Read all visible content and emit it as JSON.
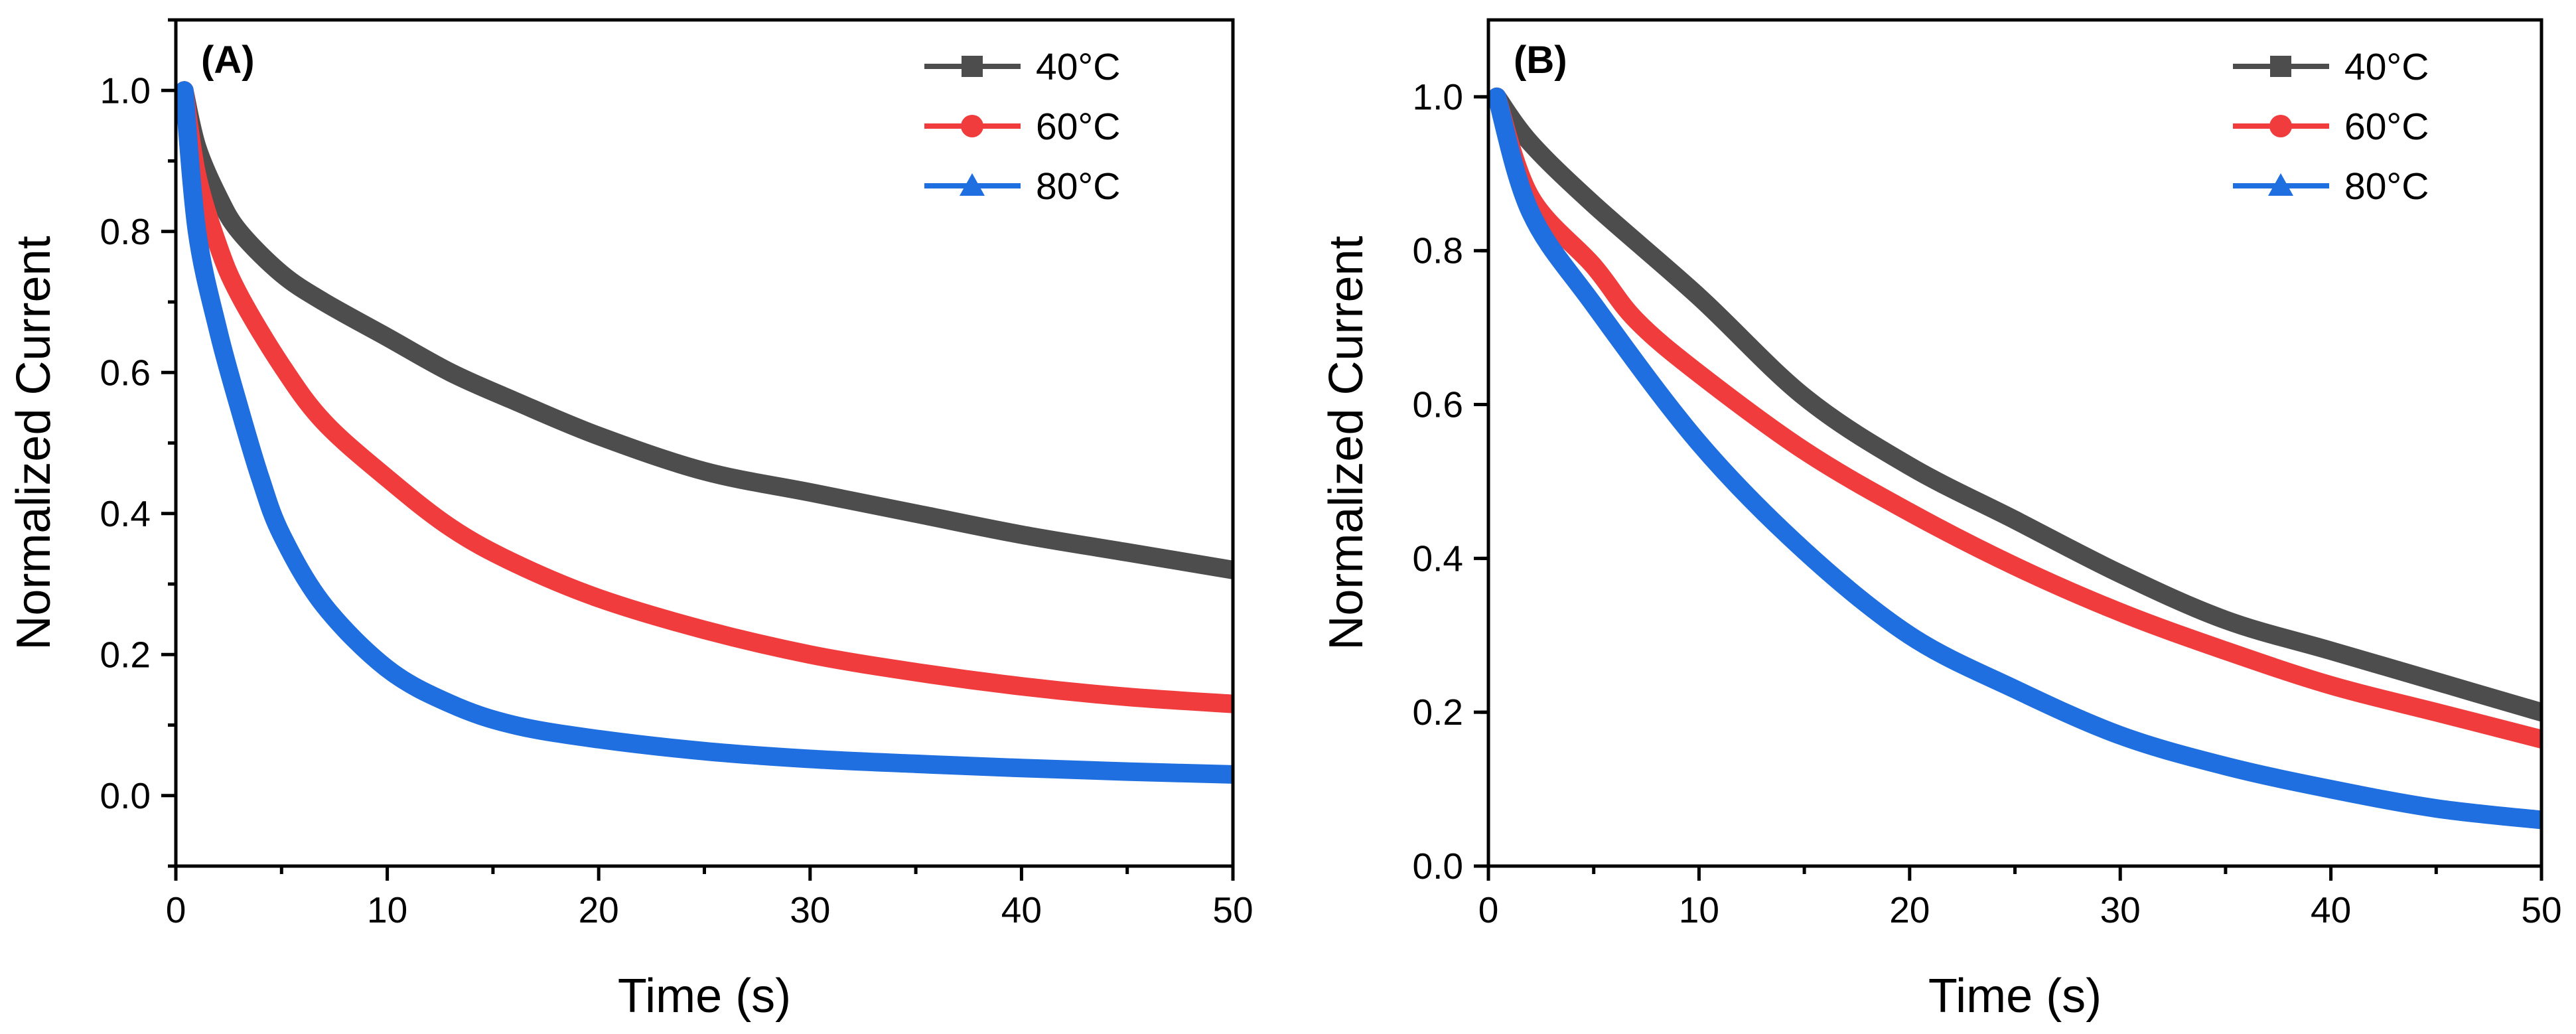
{
  "chart_data": [
    {
      "type": "line",
      "panel_label": "(A)",
      "xlabel": "Time (s)",
      "ylabel": "Normalized Current",
      "xlim": [
        0,
        50
      ],
      "ylim": [
        -0.1,
        1.1
      ],
      "xticks": [
        0,
        10,
        20,
        30,
        40,
        50
      ],
      "yticks": [
        0.0,
        0.2,
        0.4,
        0.6,
        0.8,
        1.0
      ],
      "xtick_labels": [
        "0",
        "10",
        "20",
        "30",
        "40",
        "50"
      ],
      "ytick_labels": [
        "0.0",
        "0.2",
        "0.4",
        "0.6",
        "0.8",
        "1.0"
      ],
      "legend_position": "top-right",
      "series": [
        {
          "name": "40°C",
          "color": "#4d4d4d",
          "marker": "square",
          "x": [
            0.4,
            1,
            2,
            3,
            5,
            7,
            10,
            13,
            16,
            20,
            25,
            30,
            35,
            40,
            45,
            50
          ],
          "y": [
            1.0,
            0.92,
            0.85,
            0.8,
            0.74,
            0.7,
            0.65,
            0.6,
            0.56,
            0.51,
            0.46,
            0.43,
            0.4,
            0.37,
            0.345,
            0.32
          ]
        },
        {
          "name": "60°C",
          "color": "#f03c3c",
          "marker": "circle",
          "x": [
            0.4,
            1,
            2,
            3,
            5,
            7,
            10,
            13,
            16,
            20,
            25,
            30,
            35,
            40,
            45,
            50
          ],
          "y": [
            1.0,
            0.88,
            0.78,
            0.71,
            0.61,
            0.53,
            0.45,
            0.38,
            0.33,
            0.28,
            0.235,
            0.2,
            0.175,
            0.155,
            0.14,
            0.13
          ]
        },
        {
          "name": "80°C",
          "color": "#1f6fe0",
          "marker": "triangle",
          "x": [
            0.4,
            1,
            2,
            3,
            4,
            5,
            7,
            10,
            13,
            16,
            20,
            25,
            30,
            35,
            40,
            45,
            50
          ],
          "y": [
            1.0,
            0.8,
            0.66,
            0.55,
            0.45,
            0.37,
            0.27,
            0.18,
            0.13,
            0.1,
            0.08,
            0.063,
            0.052,
            0.045,
            0.039,
            0.034,
            0.03
          ]
        }
      ]
    },
    {
      "type": "line",
      "panel_label": "(B)",
      "xlabel": "Time (s)",
      "ylabel": "Normalized Current",
      "xlim": [
        0,
        50
      ],
      "ylim": [
        0,
        1.1
      ],
      "xticks": [
        0,
        10,
        20,
        30,
        40,
        50
      ],
      "yticks": [
        0.0,
        0.2,
        0.4,
        0.6,
        0.8,
        1.0
      ],
      "xtick_labels": [
        "0",
        "10",
        "20",
        "30",
        "40",
        "50"
      ],
      "ytick_labels": [
        "0.0",
        "0.2",
        "0.4",
        "0.6",
        "0.8",
        "1.0"
      ],
      "legend_position": "top-right",
      "series": [
        {
          "name": "40°C",
          "color": "#4d4d4d",
          "marker": "square",
          "x": [
            0.4,
            2,
            5,
            10,
            15,
            20,
            25,
            30,
            35,
            40,
            45,
            50
          ],
          "y": [
            1.0,
            0.94,
            0.86,
            0.74,
            0.61,
            0.52,
            0.45,
            0.38,
            0.32,
            0.28,
            0.24,
            0.2
          ]
        },
        {
          "name": "60°C",
          "color": "#f03c3c",
          "marker": "circle",
          "x": [
            0.4,
            2,
            5,
            7,
            10,
            15,
            20,
            25,
            30,
            35,
            40,
            45,
            50
          ],
          "y": [
            1.0,
            0.87,
            0.78,
            0.71,
            0.64,
            0.54,
            0.46,
            0.39,
            0.33,
            0.28,
            0.235,
            0.2,
            0.165
          ]
        },
        {
          "name": "80°C",
          "color": "#1f6fe0",
          "marker": "triangle",
          "x": [
            0.4,
            2,
            5,
            10,
            15,
            20,
            25,
            30,
            35,
            40,
            45,
            50
          ],
          "y": [
            1.0,
            0.85,
            0.73,
            0.55,
            0.41,
            0.3,
            0.23,
            0.17,
            0.13,
            0.1,
            0.075,
            0.06
          ]
        }
      ]
    }
  ]
}
